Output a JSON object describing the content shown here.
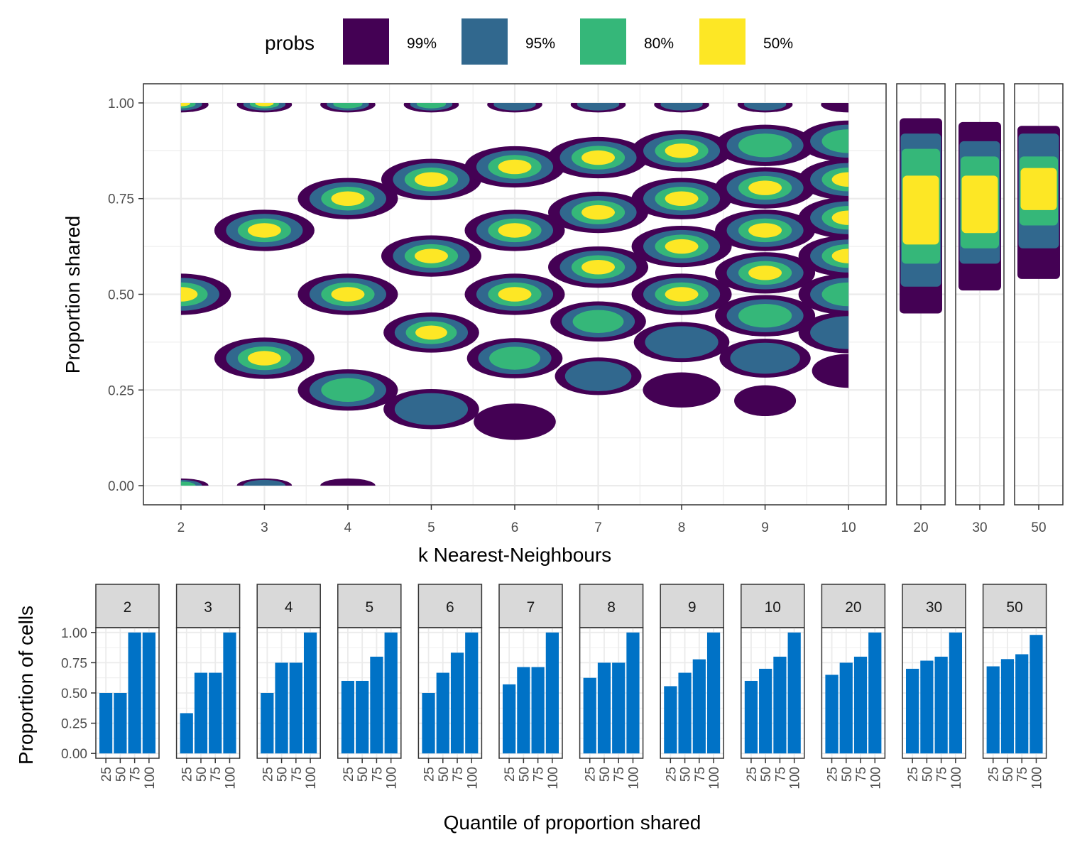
{
  "colors": {
    "p99": "#440154",
    "p95": "#31688E",
    "p80": "#35B779",
    "p50": "#FDE725",
    "bar": "#0072C6",
    "grid": "#EBEBEB",
    "strip": "#D9D9D9",
    "panel_border": "#333333"
  },
  "legend": {
    "title": "probs",
    "items": [
      {
        "label": "99%",
        "color_key": "p99"
      },
      {
        "label": "95%",
        "color_key": "p95"
      },
      {
        "label": "80%",
        "color_key": "p80"
      },
      {
        "label": "50%",
        "color_key": "p50"
      }
    ]
  },
  "chart_data": [
    {
      "type": "density_contour",
      "xlabel": "k Nearest-Neighbours",
      "ylabel": "Proportion shared",
      "x_ticks_main": [
        "2",
        "3",
        "4",
        "5",
        "6",
        "7",
        "8",
        "9",
        "10"
      ],
      "x_ticks_side": [
        "20",
        "30",
        "50"
      ],
      "y_ticks": [
        "0.00",
        "0.25",
        "0.50",
        "0.75",
        "1.00"
      ],
      "xlim": [
        1.55,
        10.45
      ],
      "ylim": [
        -0.05,
        1.05
      ],
      "levels": [
        "99%",
        "95%",
        "80%",
        "50%"
      ],
      "modes": [
        {
          "k": 2,
          "p": 1.0,
          "w": 0.0,
          "l": 3
        },
        {
          "k": 3,
          "p": 1.0,
          "w": 0.0,
          "l": 3
        },
        {
          "k": 4,
          "p": 1.0,
          "w": 0.0,
          "l": 2
        },
        {
          "k": 5,
          "p": 1.0,
          "w": 0.0,
          "l": 2
        },
        {
          "k": 6,
          "p": 1.0,
          "w": 0.0,
          "l": 1
        },
        {
          "k": 7,
          "p": 1.0,
          "w": 0.0,
          "l": 1
        },
        {
          "k": 8,
          "p": 1.0,
          "w": 0.0,
          "l": 1
        },
        {
          "k": 9,
          "p": 1.0,
          "w": 0.0,
          "l": 1
        },
        {
          "k": 10,
          "p": 1.0,
          "w": 0.0,
          "l": 0
        },
        {
          "k": 2,
          "p": 0.5,
          "w": 1.0,
          "l": 3
        },
        {
          "k": 3,
          "p": 0.667,
          "w": 1.0,
          "l": 3
        },
        {
          "k": 3,
          "p": 0.333,
          "w": 1.0,
          "l": 3
        },
        {
          "k": 4,
          "p": 0.75,
          "w": 1.0,
          "l": 3
        },
        {
          "k": 4,
          "p": 0.5,
          "w": 1.0,
          "l": 3
        },
        {
          "k": 4,
          "p": 0.25,
          "w": 1.0,
          "l": 2
        },
        {
          "k": 5,
          "p": 0.8,
          "w": 1.0,
          "l": 3
        },
        {
          "k": 5,
          "p": 0.6,
          "w": 1.0,
          "l": 3
        },
        {
          "k": 5,
          "p": 0.4,
          "w": 0.9,
          "l": 3
        },
        {
          "k": 5,
          "p": 0.2,
          "w": 0.9,
          "l": 1
        },
        {
          "k": 6,
          "p": 0.833,
          "w": 1.0,
          "l": 3
        },
        {
          "k": 6,
          "p": 0.667,
          "w": 1.0,
          "l": 3
        },
        {
          "k": 6,
          "p": 0.5,
          "w": 1.0,
          "l": 3
        },
        {
          "k": 6,
          "p": 0.333,
          "w": 0.9,
          "l": 2
        },
        {
          "k": 6,
          "p": 0.167,
          "w": 0.6,
          "l": 0
        },
        {
          "k": 7,
          "p": 0.857,
          "w": 1.0,
          "l": 3
        },
        {
          "k": 7,
          "p": 0.714,
          "w": 1.0,
          "l": 3
        },
        {
          "k": 7,
          "p": 0.571,
          "w": 1.0,
          "l": 3
        },
        {
          "k": 7,
          "p": 0.429,
          "w": 0.9,
          "l": 2
        },
        {
          "k": 7,
          "p": 0.286,
          "w": 0.7,
          "l": 1
        },
        {
          "k": 8,
          "p": 0.875,
          "w": 1.0,
          "l": 3
        },
        {
          "k": 8,
          "p": 0.75,
          "w": 1.0,
          "l": 3
        },
        {
          "k": 8,
          "p": 0.625,
          "w": 1.0,
          "l": 3
        },
        {
          "k": 8,
          "p": 0.5,
          "w": 1.0,
          "l": 3
        },
        {
          "k": 8,
          "p": 0.375,
          "w": 0.9,
          "l": 1
        },
        {
          "k": 8,
          "p": 0.25,
          "w": 0.5,
          "l": 0
        },
        {
          "k": 9,
          "p": 0.889,
          "w": 1.0,
          "l": 2
        },
        {
          "k": 9,
          "p": 0.778,
          "w": 1.0,
          "l": 3
        },
        {
          "k": 9,
          "p": 0.667,
          "w": 1.0,
          "l": 3
        },
        {
          "k": 9,
          "p": 0.556,
          "w": 1.0,
          "l": 3
        },
        {
          "k": 9,
          "p": 0.444,
          "w": 1.0,
          "l": 2
        },
        {
          "k": 9,
          "p": 0.333,
          "w": 0.8,
          "l": 1
        },
        {
          "k": 9,
          "p": 0.222,
          "w": 0.15,
          "l": 0
        },
        {
          "k": 10,
          "p": 0.9,
          "w": 1.0,
          "l": 2
        },
        {
          "k": 10,
          "p": 0.8,
          "w": 1.0,
          "l": 3
        },
        {
          "k": 10,
          "p": 0.7,
          "w": 1.0,
          "l": 3
        },
        {
          "k": 10,
          "p": 0.6,
          "w": 1.0,
          "l": 3
        },
        {
          "k": 10,
          "p": 0.5,
          "w": 1.0,
          "l": 2
        },
        {
          "k": 10,
          "p": 0.4,
          "w": 1.0,
          "l": 1
        },
        {
          "k": 10,
          "p": 0.3,
          "w": 0.4,
          "l": 0
        },
        {
          "k": 2,
          "p": 0.0,
          "w": 0.0,
          "l": 2
        },
        {
          "k": 3,
          "p": 0.0,
          "w": 0.0,
          "l": 1
        },
        {
          "k": 4,
          "p": 0.0,
          "w": 0.0,
          "l": 0
        }
      ],
      "side_panels": [
        {
          "k": "20",
          "bands": [
            [
              0.45,
              0.96,
              "p99"
            ],
            [
              0.52,
              0.92,
              "p95"
            ],
            [
              0.58,
              0.88,
              "p80"
            ],
            [
              0.63,
              0.81,
              "p50"
            ]
          ]
        },
        {
          "k": "30",
          "bands": [
            [
              0.51,
              0.95,
              "p99"
            ],
            [
              0.58,
              0.9,
              "p95"
            ],
            [
              0.62,
              0.86,
              "p80"
            ],
            [
              0.66,
              0.81,
              "p50"
            ]
          ]
        },
        {
          "k": "50",
          "bands": [
            [
              0.54,
              0.94,
              "p99"
            ],
            [
              0.62,
              0.92,
              "p95"
            ],
            [
              0.68,
              0.86,
              "p80"
            ],
            [
              0.72,
              0.83,
              "p50"
            ]
          ]
        }
      ]
    },
    {
      "type": "bar",
      "xlabel": "Quantile of proportion shared",
      "ylabel": "Proportion of cells",
      "categories": [
        "25",
        "50",
        "75",
        "100"
      ],
      "y_ticks": [
        "0.00",
        "0.25",
        "0.50",
        "0.75",
        "1.00"
      ],
      "ylim": [
        -0.04,
        1.04
      ],
      "facets": [
        {
          "label": "2",
          "values": [
            0.5,
            0.5,
            1.0,
            1.0
          ]
        },
        {
          "label": "3",
          "values": [
            0.333,
            0.667,
            0.667,
            1.0
          ]
        },
        {
          "label": "4",
          "values": [
            0.5,
            0.75,
            0.75,
            1.0
          ]
        },
        {
          "label": "5",
          "values": [
            0.6,
            0.6,
            0.8,
            1.0
          ]
        },
        {
          "label": "6",
          "values": [
            0.5,
            0.667,
            0.833,
            1.0
          ]
        },
        {
          "label": "7",
          "values": [
            0.571,
            0.714,
            0.714,
            1.0
          ]
        },
        {
          "label": "8",
          "values": [
            0.625,
            0.75,
            0.75,
            1.0
          ]
        },
        {
          "label": "9",
          "values": [
            0.556,
            0.667,
            0.778,
            1.0
          ]
        },
        {
          "label": "10",
          "values": [
            0.6,
            0.7,
            0.8,
            1.0
          ]
        },
        {
          "label": "20",
          "values": [
            0.65,
            0.75,
            0.8,
            1.0
          ]
        },
        {
          "label": "30",
          "values": [
            0.7,
            0.767,
            0.8,
            1.0
          ]
        },
        {
          "label": "50",
          "values": [
            0.72,
            0.78,
            0.82,
            0.98
          ]
        }
      ]
    }
  ]
}
